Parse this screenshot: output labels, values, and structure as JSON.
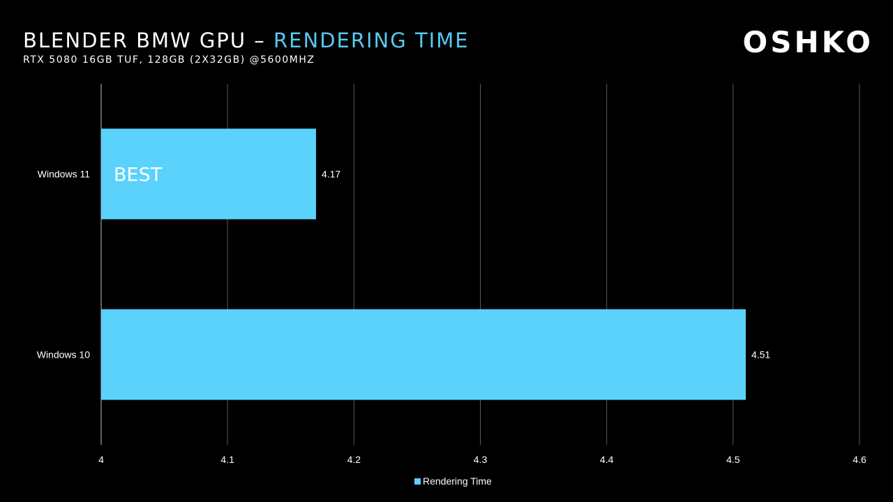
{
  "header": {
    "title_main": "BLENDER BMW GPU – ",
    "title_accent": "RENDERING TIME",
    "subtitle": "RTX 5080 16GB TUF, 128GB (2X32GB) @5600MHZ",
    "logo": "OSHKO"
  },
  "colors": {
    "bar": "#5ad2fc",
    "accent": "#5ac8f0",
    "background": "#000000",
    "grid": "#5a5a5a"
  },
  "chart_data": {
    "type": "bar",
    "orientation": "horizontal",
    "categories": [
      "Windows 11",
      "Windows 10"
    ],
    "series": [
      {
        "name": "Rendering Time",
        "values": [
          4.17,
          4.51
        ]
      }
    ],
    "data_labels": [
      "4.17",
      "4.51"
    ],
    "annotations": [
      {
        "category": "Windows 11",
        "text": "BEST"
      }
    ],
    "xlim": [
      4,
      4.6
    ],
    "x_ticks": [
      "4",
      "4.1",
      "4.2",
      "4.3",
      "4.4",
      "4.5",
      "4.6"
    ],
    "grid": true,
    "legend": "bottom"
  }
}
